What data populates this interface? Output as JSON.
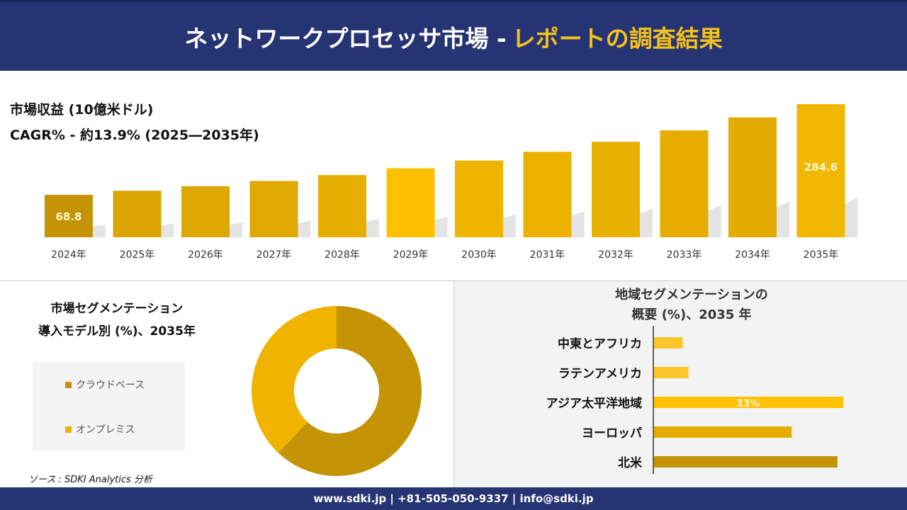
{
  "header": {
    "title_main": "ネットワークプロセッサ市場 -",
    "title_highlight": "レポートの調査結果"
  },
  "revenue": {
    "title": "市場収益 (10億米ドル)",
    "cagr": "CAGR% - 約13.9% (2025―2035年)"
  },
  "chart_data": [
    {
      "type": "bar",
      "title": "市場収益 (10億米ドル)",
      "categories": [
        "2024年",
        "2025年",
        "2026年",
        "2027年",
        "2028年",
        "2029年",
        "2030年",
        "2031年",
        "2032年",
        "2033年",
        "2034年",
        "2035年"
      ],
      "values": [
        68.8,
        78.4,
        89.3,
        101.7,
        115.8,
        131.9,
        150.3,
        171.2,
        195.0,
        222.1,
        253.0,
        284.6
      ],
      "data_labels": {
        "0": "68.8",
        "11": "284.6"
      },
      "colors": [
        "#C49306",
        "#DBA503",
        "#DDA704",
        "#E0A902",
        "#E5AE00",
        "#FFC000",
        "#EDB400",
        "#EBB200",
        "#E8B000",
        "#E6AD00",
        "#E3AB00",
        "#F0B800"
      ]
    },
    {
      "type": "pie",
      "title": "市場セグメンテーション 導入モデル別 (%)、2035年",
      "categories": [
        "クラウドベース",
        "オンプレミス"
      ],
      "values": [
        62,
        38
      ],
      "colors": [
        "#C49306",
        "#F0B400"
      ]
    },
    {
      "type": "bar",
      "orientation": "horizontal",
      "title": "地域セグメンテーションの概要 (%)、2035 年",
      "categories": [
        "中東とアフリカ",
        "ラテンアメリカ",
        "アジア太平洋地域",
        "ヨーロッパ",
        "北米"
      ],
      "values": [
        5,
        6,
        33,
        24,
        32
      ],
      "data_labels": {
        "2": "33%"
      },
      "colors": [
        "#FCC52A",
        "#FCC52A",
        "#FFC000",
        "#E3AB00",
        "#C49306"
      ]
    }
  ],
  "segment": {
    "title_line1": "市場セグメンテーション",
    "title_line2": "導入モデル別 (%)、2035年"
  },
  "region": {
    "title_line1": "地域セグメンテーションの",
    "title_line2": "概要 (%)、2035 年"
  },
  "source": "ソース : SDKI Analytics 分析",
  "footer": "www.sdki.jp | +81-505-050-9337 | info@sdki.jp"
}
